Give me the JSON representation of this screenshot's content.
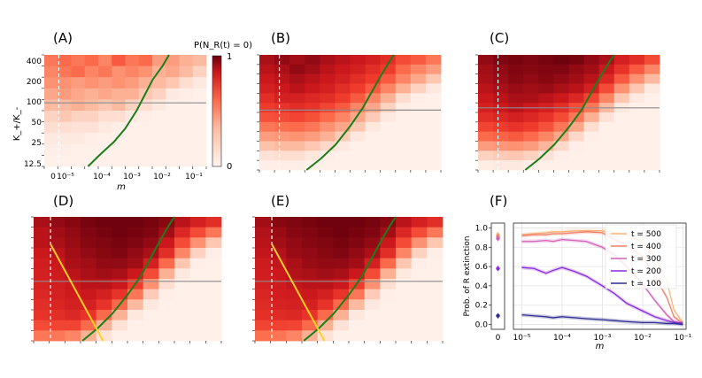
{
  "colors": {
    "grad_low": "#fff5f0",
    "grad_mid": "#fb6a4a",
    "grad_high": "#67000d",
    "green_curve": "#1a7f1a",
    "yellow_line": "#ffd21f",
    "gray_line": "#8c8c8c",
    "dashed_line": "#ffffff"
  },
  "figure": {
    "panel_labels": [
      "(A)",
      "(B)",
      "(C)",
      "(D)",
      "(E)",
      "(F)"
    ],
    "heatmap_ylabel": "K_+/K_-",
    "heatmap_xlabel": "m",
    "heatmap_xticks": [
      "0",
      "10⁻⁵",
      "10⁻⁴",
      "10⁻³",
      "10⁻²",
      "10⁻¹"
    ],
    "heatmap_yticks": [
      "400",
      "200",
      "100",
      "50",
      "25",
      "12.5"
    ],
    "colorbar_title": "P(N_R(t) = 0)",
    "colorbar_ticks": [
      "1",
      "0"
    ]
  },
  "chart_data": [
    {
      "type": "heatmap",
      "panel": "(A)",
      "xlabel": "m",
      "ylabel": "K+/K-",
      "cols": 12,
      "rows": 10,
      "values": [
        [
          0.55,
          0.6,
          0.55,
          0.6,
          0.5,
          0.65,
          0.55,
          0.6,
          0.4,
          0.4,
          0.3,
          0.25
        ],
        [
          0.5,
          0.55,
          0.6,
          0.5,
          0.55,
          0.45,
          0.5,
          0.45,
          0.3,
          0.35,
          0.25,
          0.15
        ],
        [
          0.45,
          0.45,
          0.4,
          0.45,
          0.4,
          0.45,
          0.4,
          0.3,
          0.25,
          0.2,
          0.1,
          0.05
        ],
        [
          0.35,
          0.4,
          0.35,
          0.3,
          0.35,
          0.3,
          0.3,
          0.2,
          0.15,
          0.05,
          0.03,
          0.02
        ],
        [
          0.25,
          0.25,
          0.3,
          0.25,
          0.2,
          0.25,
          0.15,
          0.1,
          0.05,
          0.02,
          0.02,
          0.02
        ],
        [
          0.15,
          0.2,
          0.15,
          0.15,
          0.1,
          0.1,
          0.05,
          0.03,
          0.02,
          0.02,
          0.02,
          0.02
        ],
        [
          0.1,
          0.1,
          0.08,
          0.08,
          0.05,
          0.03,
          0.02,
          0.02,
          0.02,
          0.02,
          0.02,
          0.02
        ],
        [
          0.05,
          0.05,
          0.05,
          0.03,
          0.02,
          0.02,
          0.02,
          0.02,
          0.02,
          0.02,
          0.02,
          0.02
        ],
        [
          0.03,
          0.03,
          0.02,
          0.02,
          0.02,
          0.02,
          0.02,
          0.02,
          0.02,
          0.02,
          0.02,
          0.02
        ],
        [
          0.02,
          0.02,
          0.02,
          0.02,
          0.02,
          0.02,
          0.02,
          0.02,
          0.02,
          0.02,
          0.02,
          0.02
        ]
      ],
      "green_curve": [
        [
          0.27,
          1.0
        ],
        [
          0.34,
          0.9
        ],
        [
          0.43,
          0.78
        ],
        [
          0.5,
          0.66
        ],
        [
          0.57,
          0.5
        ],
        [
          0.62,
          0.36
        ],
        [
          0.67,
          0.22
        ],
        [
          0.73,
          0.1
        ],
        [
          0.77,
          0.0
        ]
      ],
      "vertical_dashed_x": 0.09,
      "horizontal_line_y": 0.43
    },
    {
      "type": "heatmap",
      "panel": "(B)",
      "cols": 12,
      "rows": 12,
      "values": [
        [
          0.92,
          0.95,
          0.93,
          0.95,
          0.92,
          0.9,
          0.88,
          0.85,
          0.8,
          0.7,
          0.65,
          0.55
        ],
        [
          0.9,
          0.92,
          0.95,
          0.93,
          0.9,
          0.88,
          0.85,
          0.8,
          0.75,
          0.6,
          0.5,
          0.4
        ],
        [
          0.88,
          0.9,
          0.92,
          0.9,
          0.88,
          0.85,
          0.8,
          0.75,
          0.65,
          0.5,
          0.35,
          0.2
        ],
        [
          0.85,
          0.88,
          0.9,
          0.88,
          0.85,
          0.8,
          0.75,
          0.65,
          0.5,
          0.3,
          0.15,
          0.05
        ],
        [
          0.8,
          0.85,
          0.85,
          0.82,
          0.8,
          0.75,
          0.65,
          0.5,
          0.3,
          0.1,
          0.03,
          0.02
        ],
        [
          0.75,
          0.78,
          0.8,
          0.78,
          0.72,
          0.65,
          0.5,
          0.35,
          0.15,
          0.04,
          0.02,
          0.02
        ],
        [
          0.68,
          0.7,
          0.72,
          0.68,
          0.6,
          0.5,
          0.35,
          0.18,
          0.05,
          0.02,
          0.02,
          0.02
        ],
        [
          0.55,
          0.58,
          0.6,
          0.55,
          0.45,
          0.35,
          0.2,
          0.06,
          0.02,
          0.02,
          0.02,
          0.02
        ],
        [
          0.4,
          0.42,
          0.45,
          0.4,
          0.3,
          0.18,
          0.06,
          0.02,
          0.02,
          0.02,
          0.02,
          0.02
        ],
        [
          0.22,
          0.25,
          0.25,
          0.2,
          0.12,
          0.05,
          0.02,
          0.02,
          0.02,
          0.02,
          0.02,
          0.02
        ],
        [
          0.08,
          0.1,
          0.1,
          0.06,
          0.03,
          0.02,
          0.02,
          0.02,
          0.02,
          0.02,
          0.02,
          0.02
        ],
        [
          0.03,
          0.03,
          0.03,
          0.02,
          0.02,
          0.02,
          0.02,
          0.02,
          0.02,
          0.02,
          0.02,
          0.02
        ]
      ],
      "green_curve": [
        [
          0.26,
          1.0
        ],
        [
          0.34,
          0.9
        ],
        [
          0.42,
          0.78
        ],
        [
          0.5,
          0.62
        ],
        [
          0.57,
          0.46
        ],
        [
          0.62,
          0.32
        ],
        [
          0.67,
          0.18
        ],
        [
          0.72,
          0.05
        ],
        [
          0.74,
          0.0
        ]
      ],
      "vertical_dashed_x": 0.11,
      "horizontal_line_y": 0.48
    },
    {
      "type": "heatmap",
      "panel": "(C)",
      "cols": 12,
      "rows": 12,
      "values": [
        [
          0.95,
          0.97,
          0.98,
          0.97,
          0.98,
          0.99,
          0.98,
          0.95,
          0.92,
          0.85,
          0.8,
          0.7
        ],
        [
          0.93,
          0.95,
          0.97,
          0.96,
          0.97,
          0.97,
          0.95,
          0.93,
          0.88,
          0.78,
          0.65,
          0.5
        ],
        [
          0.92,
          0.94,
          0.96,
          0.95,
          0.96,
          0.95,
          0.93,
          0.9,
          0.82,
          0.65,
          0.45,
          0.25
        ],
        [
          0.9,
          0.92,
          0.94,
          0.93,
          0.94,
          0.92,
          0.9,
          0.85,
          0.7,
          0.45,
          0.2,
          0.05
        ],
        [
          0.88,
          0.9,
          0.92,
          0.92,
          0.9,
          0.88,
          0.82,
          0.72,
          0.5,
          0.2,
          0.05,
          0.02
        ],
        [
          0.85,
          0.88,
          0.9,
          0.88,
          0.85,
          0.8,
          0.7,
          0.55,
          0.25,
          0.05,
          0.02,
          0.02
        ],
        [
          0.8,
          0.82,
          0.85,
          0.82,
          0.78,
          0.7,
          0.55,
          0.3,
          0.08,
          0.02,
          0.02,
          0.02
        ],
        [
          0.72,
          0.75,
          0.78,
          0.75,
          0.68,
          0.55,
          0.35,
          0.1,
          0.02,
          0.02,
          0.02,
          0.02
        ],
        [
          0.6,
          0.62,
          0.65,
          0.6,
          0.5,
          0.35,
          0.12,
          0.03,
          0.02,
          0.02,
          0.02,
          0.02
        ],
        [
          0.4,
          0.42,
          0.45,
          0.4,
          0.28,
          0.12,
          0.03,
          0.02,
          0.02,
          0.02,
          0.02,
          0.02
        ],
        [
          0.15,
          0.18,
          0.2,
          0.15,
          0.08,
          0.03,
          0.02,
          0.02,
          0.02,
          0.02,
          0.02,
          0.02
        ],
        [
          0.04,
          0.05,
          0.05,
          0.03,
          0.02,
          0.02,
          0.02,
          0.02,
          0.02,
          0.02,
          0.02,
          0.02
        ]
      ],
      "green_curve": [
        [
          0.26,
          1.0
        ],
        [
          0.34,
          0.9
        ],
        [
          0.42,
          0.78
        ],
        [
          0.5,
          0.63
        ],
        [
          0.57,
          0.48
        ],
        [
          0.62,
          0.34
        ],
        [
          0.67,
          0.2
        ],
        [
          0.72,
          0.07
        ],
        [
          0.75,
          0.0
        ]
      ],
      "vertical_dashed_x": 0.11,
      "horizontal_line_y": 0.46
    },
    {
      "type": "heatmap",
      "panel": "(D)",
      "cols": 12,
      "rows": 12,
      "values": [
        [
          0.92,
          0.95,
          0.96,
          0.98,
          0.99,
          0.99,
          0.99,
          0.98,
          0.96,
          0.9,
          0.85,
          0.8
        ],
        [
          0.9,
          0.93,
          0.95,
          0.97,
          0.98,
          0.99,
          0.98,
          0.97,
          0.93,
          0.82,
          0.7,
          0.55
        ],
        [
          0.9,
          0.92,
          0.94,
          0.96,
          0.97,
          0.98,
          0.97,
          0.95,
          0.88,
          0.7,
          0.45,
          0.2
        ],
        [
          0.88,
          0.9,
          0.93,
          0.95,
          0.96,
          0.97,
          0.95,
          0.92,
          0.8,
          0.5,
          0.15,
          0.03
        ],
        [
          0.86,
          0.88,
          0.92,
          0.93,
          0.95,
          0.95,
          0.93,
          0.85,
          0.6,
          0.2,
          0.03,
          0.02
        ],
        [
          0.85,
          0.87,
          0.9,
          0.92,
          0.93,
          0.92,
          0.88,
          0.7,
          0.3,
          0.05,
          0.02,
          0.02
        ],
        [
          0.84,
          0.86,
          0.88,
          0.9,
          0.9,
          0.88,
          0.75,
          0.45,
          0.1,
          0.02,
          0.02,
          0.02
        ],
        [
          0.82,
          0.85,
          0.87,
          0.88,
          0.85,
          0.78,
          0.55,
          0.18,
          0.03,
          0.02,
          0.02,
          0.02
        ],
        [
          0.8,
          0.83,
          0.85,
          0.85,
          0.78,
          0.6,
          0.25,
          0.05,
          0.02,
          0.02,
          0.02,
          0.02
        ],
        [
          0.78,
          0.8,
          0.82,
          0.78,
          0.6,
          0.3,
          0.06,
          0.02,
          0.02,
          0.02,
          0.02,
          0.02
        ],
        [
          0.7,
          0.72,
          0.72,
          0.6,
          0.3,
          0.08,
          0.02,
          0.02,
          0.02,
          0.02,
          0.02,
          0.02
        ],
        [
          0.55,
          0.55,
          0.5,
          0.3,
          0.08,
          0.02,
          0.02,
          0.02,
          0.02,
          0.02,
          0.02,
          0.02
        ]
      ],
      "green_curve": [
        [
          0.26,
          1.0
        ],
        [
          0.34,
          0.9
        ],
        [
          0.42,
          0.78
        ],
        [
          0.5,
          0.63
        ],
        [
          0.57,
          0.48
        ],
        [
          0.62,
          0.34
        ],
        [
          0.67,
          0.2
        ],
        [
          0.72,
          0.07
        ],
        [
          0.75,
          0.0
        ]
      ],
      "yellow_line": [
        [
          0.09,
          0.22
        ],
        [
          0.37,
          1.0
        ]
      ],
      "vertical_dashed_x": 0.09,
      "horizontal_line_y": 0.52
    },
    {
      "type": "heatmap",
      "panel": "(E)",
      "cols": 12,
      "rows": 12,
      "values": [
        [
          0.93,
          0.96,
          0.97,
          0.98,
          0.99,
          0.99,
          0.99,
          0.98,
          0.96,
          0.9,
          0.85,
          0.8
        ],
        [
          0.91,
          0.94,
          0.96,
          0.97,
          0.98,
          0.99,
          0.98,
          0.97,
          0.93,
          0.82,
          0.7,
          0.55
        ],
        [
          0.9,
          0.93,
          0.95,
          0.96,
          0.97,
          0.98,
          0.97,
          0.95,
          0.88,
          0.7,
          0.45,
          0.2
        ],
        [
          0.89,
          0.91,
          0.94,
          0.95,
          0.96,
          0.97,
          0.95,
          0.92,
          0.8,
          0.5,
          0.15,
          0.03
        ],
        [
          0.87,
          0.89,
          0.92,
          0.94,
          0.95,
          0.95,
          0.93,
          0.85,
          0.6,
          0.2,
          0.03,
          0.02
        ],
        [
          0.86,
          0.88,
          0.91,
          0.92,
          0.93,
          0.92,
          0.88,
          0.7,
          0.3,
          0.05,
          0.02,
          0.02
        ],
        [
          0.85,
          0.87,
          0.89,
          0.9,
          0.9,
          0.88,
          0.75,
          0.45,
          0.1,
          0.02,
          0.02,
          0.02
        ],
        [
          0.83,
          0.86,
          0.87,
          0.88,
          0.85,
          0.78,
          0.55,
          0.18,
          0.03,
          0.02,
          0.02,
          0.02
        ],
        [
          0.81,
          0.84,
          0.85,
          0.85,
          0.78,
          0.6,
          0.25,
          0.05,
          0.02,
          0.02,
          0.02,
          0.02
        ],
        [
          0.79,
          0.81,
          0.82,
          0.78,
          0.6,
          0.3,
          0.06,
          0.02,
          0.02,
          0.02,
          0.02,
          0.02
        ],
        [
          0.72,
          0.73,
          0.72,
          0.6,
          0.3,
          0.08,
          0.02,
          0.02,
          0.02,
          0.02,
          0.02,
          0.02
        ],
        [
          0.58,
          0.56,
          0.5,
          0.3,
          0.08,
          0.02,
          0.02,
          0.02,
          0.02,
          0.02,
          0.02,
          0.02
        ]
      ],
      "green_curve": [
        [
          0.26,
          1.0
        ],
        [
          0.34,
          0.9
        ],
        [
          0.42,
          0.78
        ],
        [
          0.5,
          0.63
        ],
        [
          0.57,
          0.48
        ],
        [
          0.62,
          0.34
        ],
        [
          0.67,
          0.2
        ],
        [
          0.72,
          0.07
        ],
        [
          0.75,
          0.0
        ]
      ],
      "yellow_line": [
        [
          0.09,
          0.22
        ],
        [
          0.37,
          1.0
        ]
      ],
      "vertical_dashed_x": 0.09,
      "horizontal_line_y": 0.52
    },
    {
      "type": "line",
      "panel": "(F)",
      "ylabel": "Prob. of R extinction",
      "xlabel": "m",
      "xscale": "log",
      "xlim": [
        6.2e-06,
        0.12
      ],
      "ylim": [
        -0.05,
        1.05
      ],
      "yticks": [
        "0.0",
        "0.2",
        "0.4",
        "0.6",
        "0.8",
        "1.0"
      ],
      "xticks": [
        "0",
        "10⁻⁵",
        "10⁻⁴",
        "10⁻³",
        "10⁻²",
        "10⁻¹"
      ],
      "grid": true,
      "legend_position": "top-right",
      "x": [
        1e-05,
        2e-05,
        4e-05,
        6e-05,
        0.0001,
        0.0002,
        0.0004,
        0.001,
        0.002,
        0.004,
        0.01,
        0.02,
        0.04,
        0.06,
        0.1
      ],
      "series": [
        {
          "name": "t = 500",
          "color": "#f7b77a",
          "zero_value": 0.93,
          "values": [
            0.93,
            0.94,
            0.95,
            0.96,
            0.96,
            0.97,
            0.97,
            0.97,
            0.95,
            0.93,
            0.85,
            0.7,
            0.45,
            0.15,
            0.02
          ]
        },
        {
          "name": "t = 400",
          "color": "#f0826a",
          "zero_value": 0.91,
          "values": [
            0.92,
            0.93,
            0.93,
            0.94,
            0.94,
            0.95,
            0.96,
            0.95,
            0.88,
            0.82,
            0.7,
            0.5,
            0.28,
            0.08,
            0.01
          ]
        },
        {
          "name": "t = 300",
          "color": "#d462b8",
          "zero_value": 0.89,
          "values": [
            0.86,
            0.86,
            0.87,
            0.86,
            0.88,
            0.87,
            0.86,
            0.8,
            0.72,
            0.6,
            0.42,
            0.25,
            0.1,
            0.03,
            0.01
          ]
        },
        {
          "name": "t = 200",
          "color": "#8a2be2",
          "zero_value": 0.58,
          "values": [
            0.59,
            0.58,
            0.53,
            0.56,
            0.59,
            0.55,
            0.5,
            0.4,
            0.32,
            0.22,
            0.14,
            0.08,
            0.04,
            0.02,
            0.01
          ]
        },
        {
          "name": "t = 100",
          "color": "#2f2f8f",
          "zero_value": 0.09,
          "values": [
            0.1,
            0.09,
            0.08,
            0.07,
            0.08,
            0.07,
            0.06,
            0.05,
            0.04,
            0.03,
            0.02,
            0.02,
            0.01,
            0.01,
            0.0
          ]
        }
      ]
    }
  ]
}
